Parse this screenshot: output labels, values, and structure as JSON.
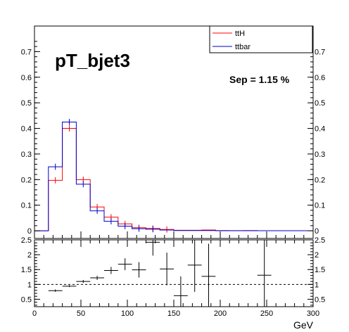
{
  "chart_data": [
    {
      "type": "line",
      "title": "pT_bjet3",
      "annotation": "Sep = 1.15 %",
      "bin_edges": [
        0,
        15,
        30,
        45,
        60,
        75,
        90,
        105,
        120,
        135,
        150,
        165,
        180,
        195,
        210,
        225,
        240,
        255,
        270,
        285,
        300
      ],
      "ylim": [
        -0.03,
        0.8
      ],
      "yticks": [
        "0",
        "0.1",
        "0.2",
        "0.3",
        "0.4",
        "0.5",
        "0.6",
        "0.7"
      ],
      "legend_position": "top-right",
      "series": [
        {
          "name": "ttH",
          "color": "#ff0000",
          "values": [
            0,
            0.197,
            0.4,
            0.2,
            0.093,
            0.053,
            0.027,
            0.012,
            0.009,
            0.005,
            0.002,
            0.002,
            0.003,
            0.001,
            0.0005,
            0.001,
            0.0003,
            0.0002,
            0.0001,
            0.0001
          ]
        },
        {
          "name": "ttbar",
          "color": "#0000cc",
          "values": [
            0,
            0.25,
            0.425,
            0.182,
            0.078,
            0.037,
            0.018,
            0.008,
            0.006,
            0.003,
            0.001,
            0.001,
            0.001,
            0.0004,
            0.0002,
            0.0002,
            0.0001,
            0.0001,
            0.0001,
            0.0001
          ]
        }
      ]
    },
    {
      "type": "scatter",
      "xlabel": "GeV",
      "xlim": [
        0,
        300
      ],
      "ylim": [
        0.25,
        2.5
      ],
      "xticks": [
        "0",
        "50",
        "100",
        "150",
        "200",
        "250",
        "300"
      ],
      "yticks": [
        "0.5",
        "1",
        "1.5",
        "2",
        "2.5"
      ],
      "reference_line": 1,
      "points": [
        {
          "x": 22.5,
          "y": 0.79,
          "xerr": 7.5,
          "yerr": 0.04
        },
        {
          "x": 37.5,
          "y": 0.94,
          "xerr": 7.5,
          "yerr": 0.03
        },
        {
          "x": 52.5,
          "y": 1.1,
          "xerr": 7.5,
          "yerr": 0.05
        },
        {
          "x": 67.5,
          "y": 1.22,
          "xerr": 7.5,
          "yerr": 0.07
        },
        {
          "x": 82.5,
          "y": 1.47,
          "xerr": 7.5,
          "yerr": 0.12
        },
        {
          "x": 97.5,
          "y": 1.68,
          "xerr": 7.5,
          "yerr": 0.2
        },
        {
          "x": 112.5,
          "y": 1.49,
          "xerr": 7.5,
          "yerr": 0.26
        },
        {
          "x": 127.5,
          "y": 2.42,
          "xerr": 7.5,
          "yerr": 0.45
        },
        {
          "x": 142.5,
          "y": 1.52,
          "xerr": 7.5,
          "yerr": 0.55
        },
        {
          "x": 157.5,
          "y": 0.62,
          "xerr": 7.5,
          "yerr": 0.65
        },
        {
          "x": 172.5,
          "y": 1.65,
          "xerr": 7.5,
          "yerr": 0.9
        },
        {
          "x": 187.5,
          "y": 1.27,
          "xerr": 7.5,
          "yerr": 1.1
        },
        {
          "x": 247.5,
          "y": 1.31,
          "xerr": 7.5,
          "yerr": 1.3
        }
      ]
    }
  ]
}
